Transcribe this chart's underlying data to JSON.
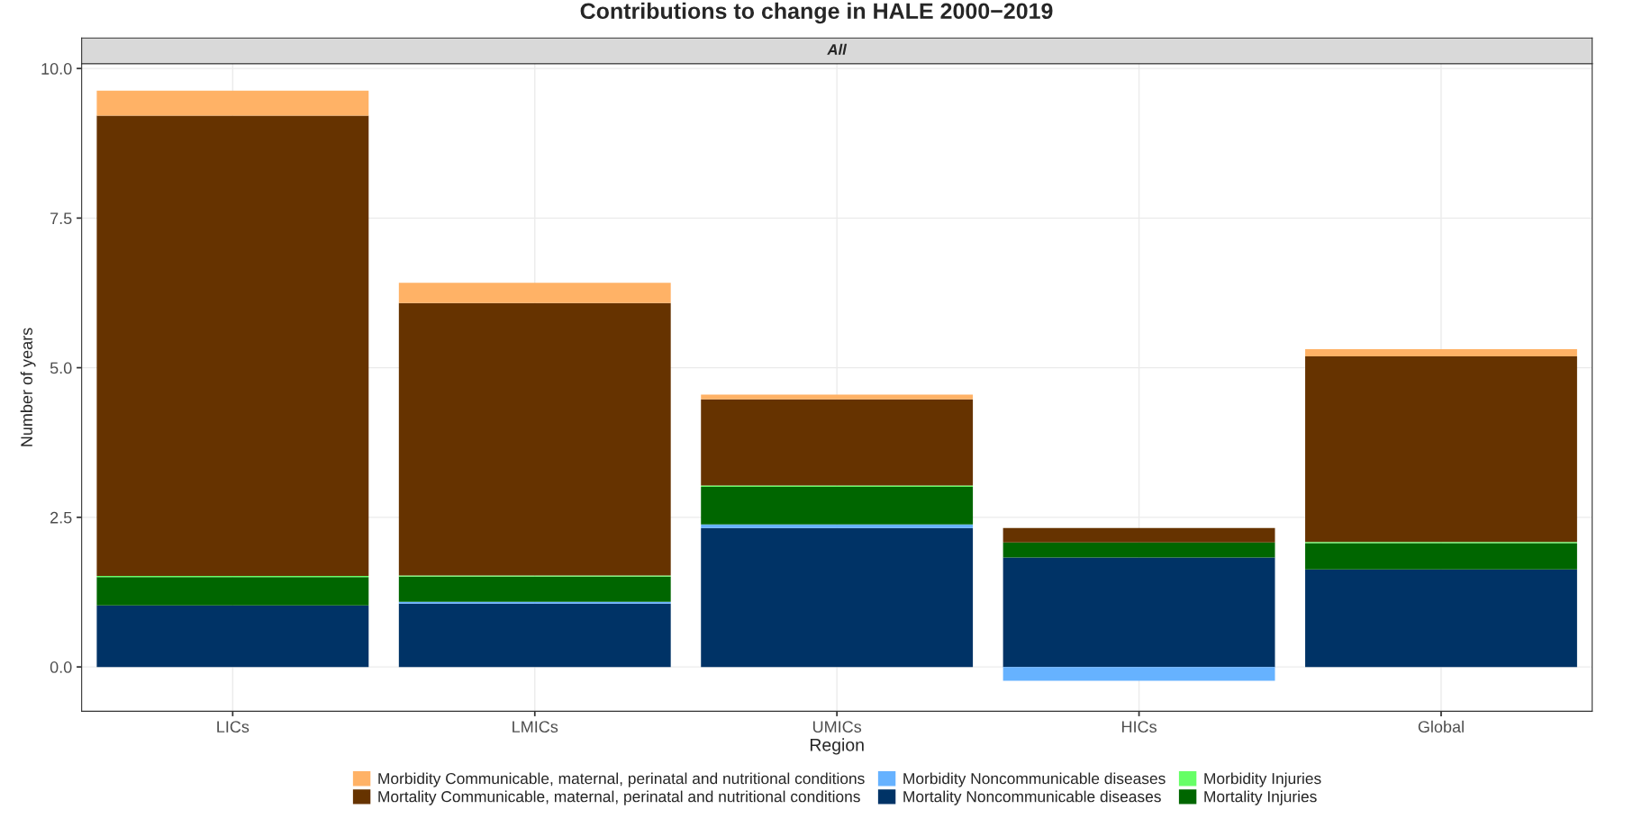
{
  "chart_data": {
    "type": "bar",
    "title": "Contributions to change in HALE 2000−2019",
    "xlabel": "Region",
    "ylabel": "Number of years",
    "annotations": [
      "All"
    ],
    "categories": [
      "LICs",
      "LMICs",
      "UMICs",
      "HICs",
      "Global"
    ],
    "stacked": true,
    "series": [
      {
        "name": "Mortality Noncommunicable diseases",
        "color": "#003366",
        "values": [
          1.03,
          1.06,
          2.32,
          1.83,
          1.63
        ]
      },
      {
        "name": "Morbidity Noncommunicable diseases",
        "color": "#66b2ff",
        "values": [
          0.0,
          0.03,
          0.06,
          -0.23,
          0.0
        ]
      },
      {
        "name": "Mortality Injuries",
        "color": "#006600",
        "values": [
          0.47,
          0.42,
          0.63,
          0.25,
          0.44
        ]
      },
      {
        "name": "Morbidity Injuries",
        "color": "#66ff66",
        "values": [
          0.02,
          0.02,
          0.02,
          0.0,
          0.02
        ]
      },
      {
        "name": "Mortality Communicable, maternal, perinatal and nutritional conditions",
        "color": "#663300",
        "values": [
          7.69,
          4.55,
          1.44,
          0.24,
          3.1
        ]
      },
      {
        "name": "Morbidity Communicable, maternal, perinatal and nutritional conditions",
        "color": "#ffb266",
        "values": [
          0.42,
          0.34,
          0.08,
          0.0,
          0.12
        ]
      }
    ],
    "ylim": [
      -0.74,
      10.08
    ],
    "yticks": [
      {
        "value": 0,
        "label": "0.0"
      },
      {
        "value": 2.5,
        "label": "2.5"
      },
      {
        "value": 5,
        "label": "5.0"
      },
      {
        "value": 7.5,
        "label": "7.5"
      },
      {
        "value": 10,
        "label": "10.0"
      }
    ],
    "grid": true,
    "legend": "bottom"
  }
}
